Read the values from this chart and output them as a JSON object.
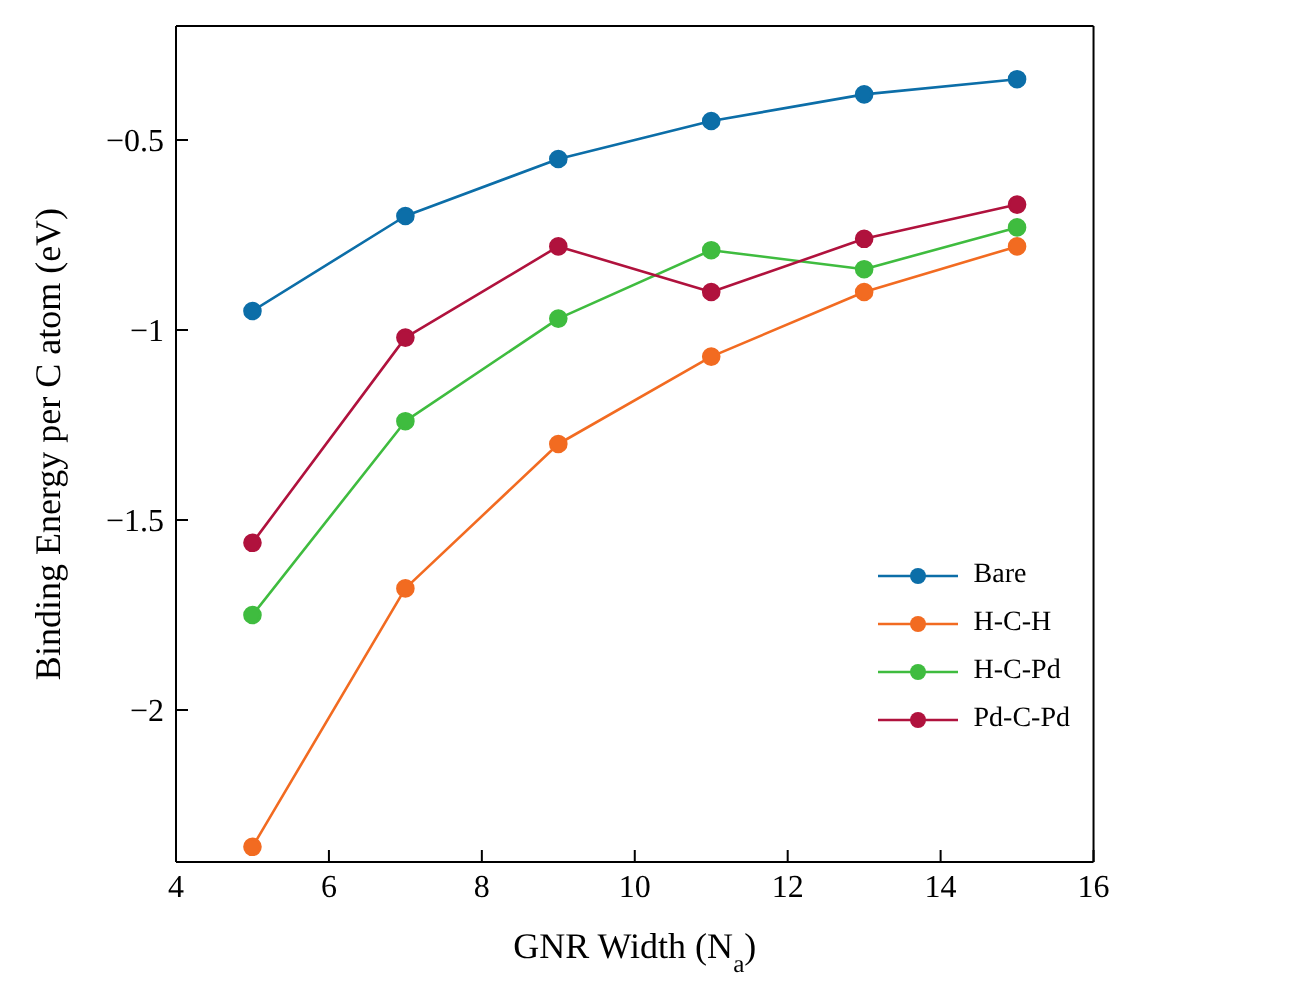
{
  "chart_data": {
    "type": "line",
    "xlabel": "GNR Width (N$_{a}$)",
    "ylabel": "Binding Energy per C atom (eV)",
    "x": [
      5,
      7,
      9,
      11,
      13,
      15
    ],
    "series": [
      {
        "name": "Bare",
        "color": "#0c6ea8",
        "values": [
          -0.95,
          -0.7,
          -0.55,
          -0.45,
          -0.38,
          -0.34
        ]
      },
      {
        "name": "H-C-H",
        "color": "#f26b21",
        "values": [
          -2.36,
          -1.68,
          -1.3,
          -1.07,
          -0.9,
          -0.78
        ]
      },
      {
        "name": "H-C-Pd",
        "color": "#3fbc3f",
        "values": [
          -1.75,
          -1.24,
          -0.97,
          -0.79,
          -0.84,
          -0.73
        ]
      },
      {
        "name": "Pd-C-Pd",
        "color": "#b0123d",
        "values": [
          -1.56,
          -1.02,
          -0.78,
          -0.9,
          -0.76,
          -0.67
        ]
      }
    ],
    "xlim": [
      4,
      16
    ],
    "xticks": [
      4,
      6,
      8,
      10,
      12,
      14,
      16
    ],
    "ylim": [
      -2.4,
      -0.2
    ],
    "yticks": [
      {
        "value": -2,
        "label": "−2"
      },
      {
        "value": -1.5,
        "label": "−1.5"
      },
      {
        "value": -1,
        "label": "−1"
      },
      {
        "value": -0.5,
        "label": "−0.5"
      }
    ],
    "marker": "circle",
    "line_style": "solid",
    "legend": "bottom right",
    "grid": false
  }
}
